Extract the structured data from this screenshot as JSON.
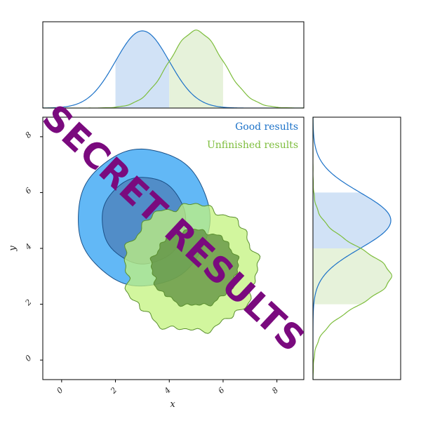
{
  "chart_data": [
    {
      "type": "area",
      "panel": "top-marginal",
      "x_range": [
        -0.7,
        9.0
      ],
      "series": [
        {
          "name": "Good results",
          "color": "#1c72c8",
          "fill": "#cfe0f5",
          "mean": 3.0,
          "sd": 1.0,
          "shaded_interval": [
            2.0,
            4.0
          ]
        },
        {
          "name": "Unfinished results",
          "color": "#7dbd3c",
          "fill": "#e5f1d8",
          "mean": 5.0,
          "sd": 1.0,
          "shaded_interval": [
            4.0,
            6.0
          ]
        }
      ]
    },
    {
      "type": "scatter",
      "panel": "joint-contours",
      "xlabel": "x",
      "ylabel": "y",
      "xlim": [
        -0.7,
        9.0
      ],
      "ylim": [
        -0.7,
        8.7
      ],
      "xticks": [
        "0",
        "2",
        "4",
        "6",
        "8"
      ],
      "yticks": [
        "0",
        "2",
        "4",
        "6",
        "8"
      ],
      "legend_placement": "top-right",
      "series": [
        {
          "name": "Good results",
          "color": "#1c72c8",
          "contours": [
            {
              "level": "outer",
              "center": [
                3.05,
                5.1
              ],
              "radius_x": 2.45,
              "radius_y": 2.45,
              "fill": "#5ab4f5"
            },
            {
              "level": "inner",
              "center": [
                3.05,
                5.0
              ],
              "radius_x": 1.55,
              "radius_y": 1.55,
              "fill": "#4f85c0"
            }
          ]
        },
        {
          "name": "Unfinished results",
          "color": "#7dbd3c",
          "contours": [
            {
              "level": "outer",
              "center": [
                4.8,
                3.3
              ],
              "radius_x": 2.45,
              "radius_y": 2.25,
              "fill": "#c3f37e"
            },
            {
              "level": "inner",
              "center": [
                4.95,
                3.3
              ],
              "radius_x": 1.6,
              "radius_y": 1.35,
              "fill": "#5c8e3e"
            }
          ]
        }
      ]
    },
    {
      "type": "area",
      "panel": "right-marginal",
      "y_range": [
        -0.7,
        8.7
      ],
      "series": [
        {
          "name": "Good results",
          "color": "#1c72c8",
          "fill": "#cfe0f5",
          "mean": 5.0,
          "sd": 1.0,
          "shaded_interval": [
            4.0,
            6.0
          ]
        },
        {
          "name": "Unfinished results",
          "color": "#7dbd3c",
          "fill": "#e5f1d8",
          "mean": 3.0,
          "sd": 1.0,
          "shaded_interval": [
            2.0,
            4.0
          ]
        }
      ]
    }
  ],
  "legend": [
    {
      "label": "Good results",
      "color": "#1c72c8"
    },
    {
      "label": "Unfinished results",
      "color": "#7dbd3c"
    }
  ],
  "watermark": {
    "text": "SECRET RESULTS",
    "color": "#7a0a7e"
  }
}
